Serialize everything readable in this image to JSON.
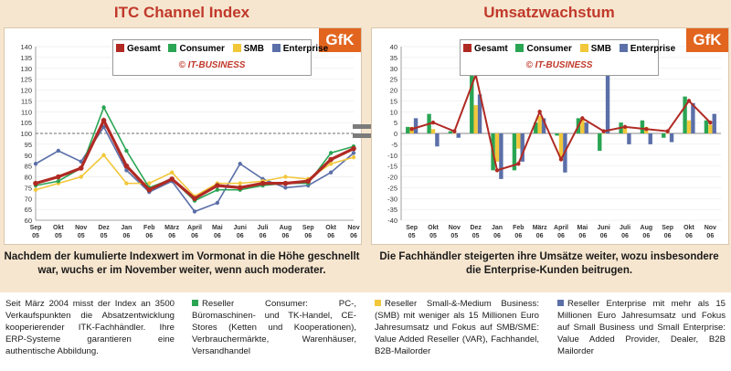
{
  "colors": {
    "gesamt": "#b02a24",
    "consumer": "#2aa553",
    "smb": "#f2c73a",
    "enterprise": "#5b6fa8",
    "title": "#c0392b",
    "gfk_bg": "#e2651f",
    "band": "#f7e6cf"
  },
  "left": {
    "title": "ITC Channel Index",
    "gfk": "GfK",
    "legend": {
      "gesamt": "Gesamt",
      "consumer": "Consumer",
      "smb": "SMB",
      "enterprise": "Enterprise",
      "copyright": "© IT-BUSINESS"
    },
    "caption": "Nachdem der kumulierte Indexwert im Vormonat in die Höhe geschnellt war, wuchs er im November weiter, wenn auch moderater."
  },
  "right": {
    "title": "Umsatzwachstum",
    "gfk": "GfK",
    "legend": {
      "gesamt": "Gesamt",
      "consumer": "Consumer",
      "smb": "SMB",
      "enterprise": "Enterprise",
      "copyright": "© IT-BUSINESS"
    },
    "caption": "Die Fachhändler steigerten ihre Umsätze weiter, wozu insbesondere die Enterprise-Kunden beitrugen."
  },
  "footer": {
    "col1": "Seit März 2004 misst der Index an 3500 Verkaufspunkten die Absatzentwicklung kooperierender ITK-Fachhändler. Ihre ERP-Systeme garantieren eine authentische Abbildung.",
    "col2": "Reseller Consumer: PC-, Büromaschinen- und TK-Handel, CE-Stores (Ketten und Kooperationen), Verbrauchermärkte, Warenhäuser, Versandhandel",
    "col3": "Reseller Small-&-Medium Business: (SMB) mit weniger als 15 Millionen Euro Jahresumsatz und Fokus auf SMB/SME: Value Added Reseller (VAR), Fachhandel, B2B-Mailorder",
    "col4": "Reseller Enterprise mit mehr als 15 Millionen Euro Jahresumsatz und Fokus auf Small Business und Small Enterprise: Value Added Provider, Dealer, B2B Mailorder"
  },
  "chart_data": [
    {
      "type": "line",
      "title": "ITC Channel Index",
      "categories": [
        [
          "Sep",
          "05"
        ],
        [
          "Okt",
          "05"
        ],
        [
          "Nov",
          "05"
        ],
        [
          "Dez",
          "05"
        ],
        [
          "Jan",
          "06"
        ],
        [
          "Feb",
          "06"
        ],
        [
          "März",
          "06"
        ],
        [
          "April",
          "06"
        ],
        [
          "Mai",
          "06"
        ],
        [
          "Juni",
          "06"
        ],
        [
          "Juli",
          "06"
        ],
        [
          "Aug",
          "06"
        ],
        [
          "Sep",
          "06"
        ],
        [
          "Okt",
          "06"
        ],
        [
          "Nov",
          "06"
        ]
      ],
      "ylim": [
        60,
        140
      ],
      "yticks": [
        60,
        65,
        70,
        75,
        80,
        85,
        90,
        95,
        100,
        105,
        110,
        115,
        120,
        125,
        130,
        135,
        140
      ],
      "reference_line": 100,
      "series": [
        {
          "name": "Gesamt",
          "values": [
            77,
            80,
            84,
            106,
            85,
            74,
            79,
            70,
            76,
            75,
            77,
            77,
            78,
            88,
            93
          ]
        },
        {
          "name": "Consumer",
          "values": [
            76,
            78,
            84,
            112,
            92,
            75,
            79,
            69,
            74,
            74,
            76,
            77,
            77,
            91,
            94
          ]
        },
        {
          "name": "SMB",
          "values": [
            74,
            77,
            80,
            90,
            77,
            77,
            82,
            71,
            77,
            77,
            78,
            80,
            79,
            86,
            89
          ]
        },
        {
          "name": "Enterprise",
          "values": [
            86,
            92,
            87,
            103,
            83,
            73,
            78,
            64,
            68,
            86,
            79,
            75,
            76,
            82,
            91
          ]
        }
      ]
    },
    {
      "type": "bar",
      "title": "Umsatzwachstum",
      "categories": [
        [
          "Sep",
          "05"
        ],
        [
          "Okt",
          "05"
        ],
        [
          "Nov",
          "05"
        ],
        [
          "Dez",
          "05"
        ],
        [
          "Jan",
          "06"
        ],
        [
          "Feb",
          "06"
        ],
        [
          "März",
          "06"
        ],
        [
          "April",
          "06"
        ],
        [
          "Mai",
          "06"
        ],
        [
          "Juni",
          "06"
        ],
        [
          "Juli",
          "06"
        ],
        [
          "Aug",
          "06"
        ],
        [
          "Sep",
          "06"
        ],
        [
          "Okt",
          "06"
        ],
        [
          "Nov",
          "06"
        ]
      ],
      "ylim": [
        -40,
        40
      ],
      "yticks": [
        -40,
        -35,
        -30,
        -25,
        -20,
        -15,
        -10,
        -5,
        0,
        5,
        10,
        15,
        20,
        25,
        30,
        35,
        40
      ],
      "series": [
        {
          "name": "Consumer",
          "values": [
            3,
            9,
            1,
            33,
            -17,
            -17,
            5,
            -1,
            7,
            -8,
            5,
            6,
            -2,
            17,
            6
          ]
        },
        {
          "name": "SMB",
          "values": [
            3,
            2,
            0,
            13,
            -13,
            -7,
            8,
            -12,
            7,
            0,
            3,
            3,
            0,
            6,
            4
          ]
        },
        {
          "name": "Enterprise",
          "values": [
            7,
            -6,
            -2,
            18,
            -21,
            -13,
            7,
            -18,
            5,
            28,
            -5,
            -5,
            -4,
            14,
            9
          ]
        },
        {
          "name": "Gesamt",
          "type": "line",
          "values": [
            2,
            5,
            1,
            27,
            -17,
            -14,
            10,
            -12,
            7,
            1,
            3,
            2,
            1,
            15,
            5
          ]
        }
      ]
    }
  ]
}
